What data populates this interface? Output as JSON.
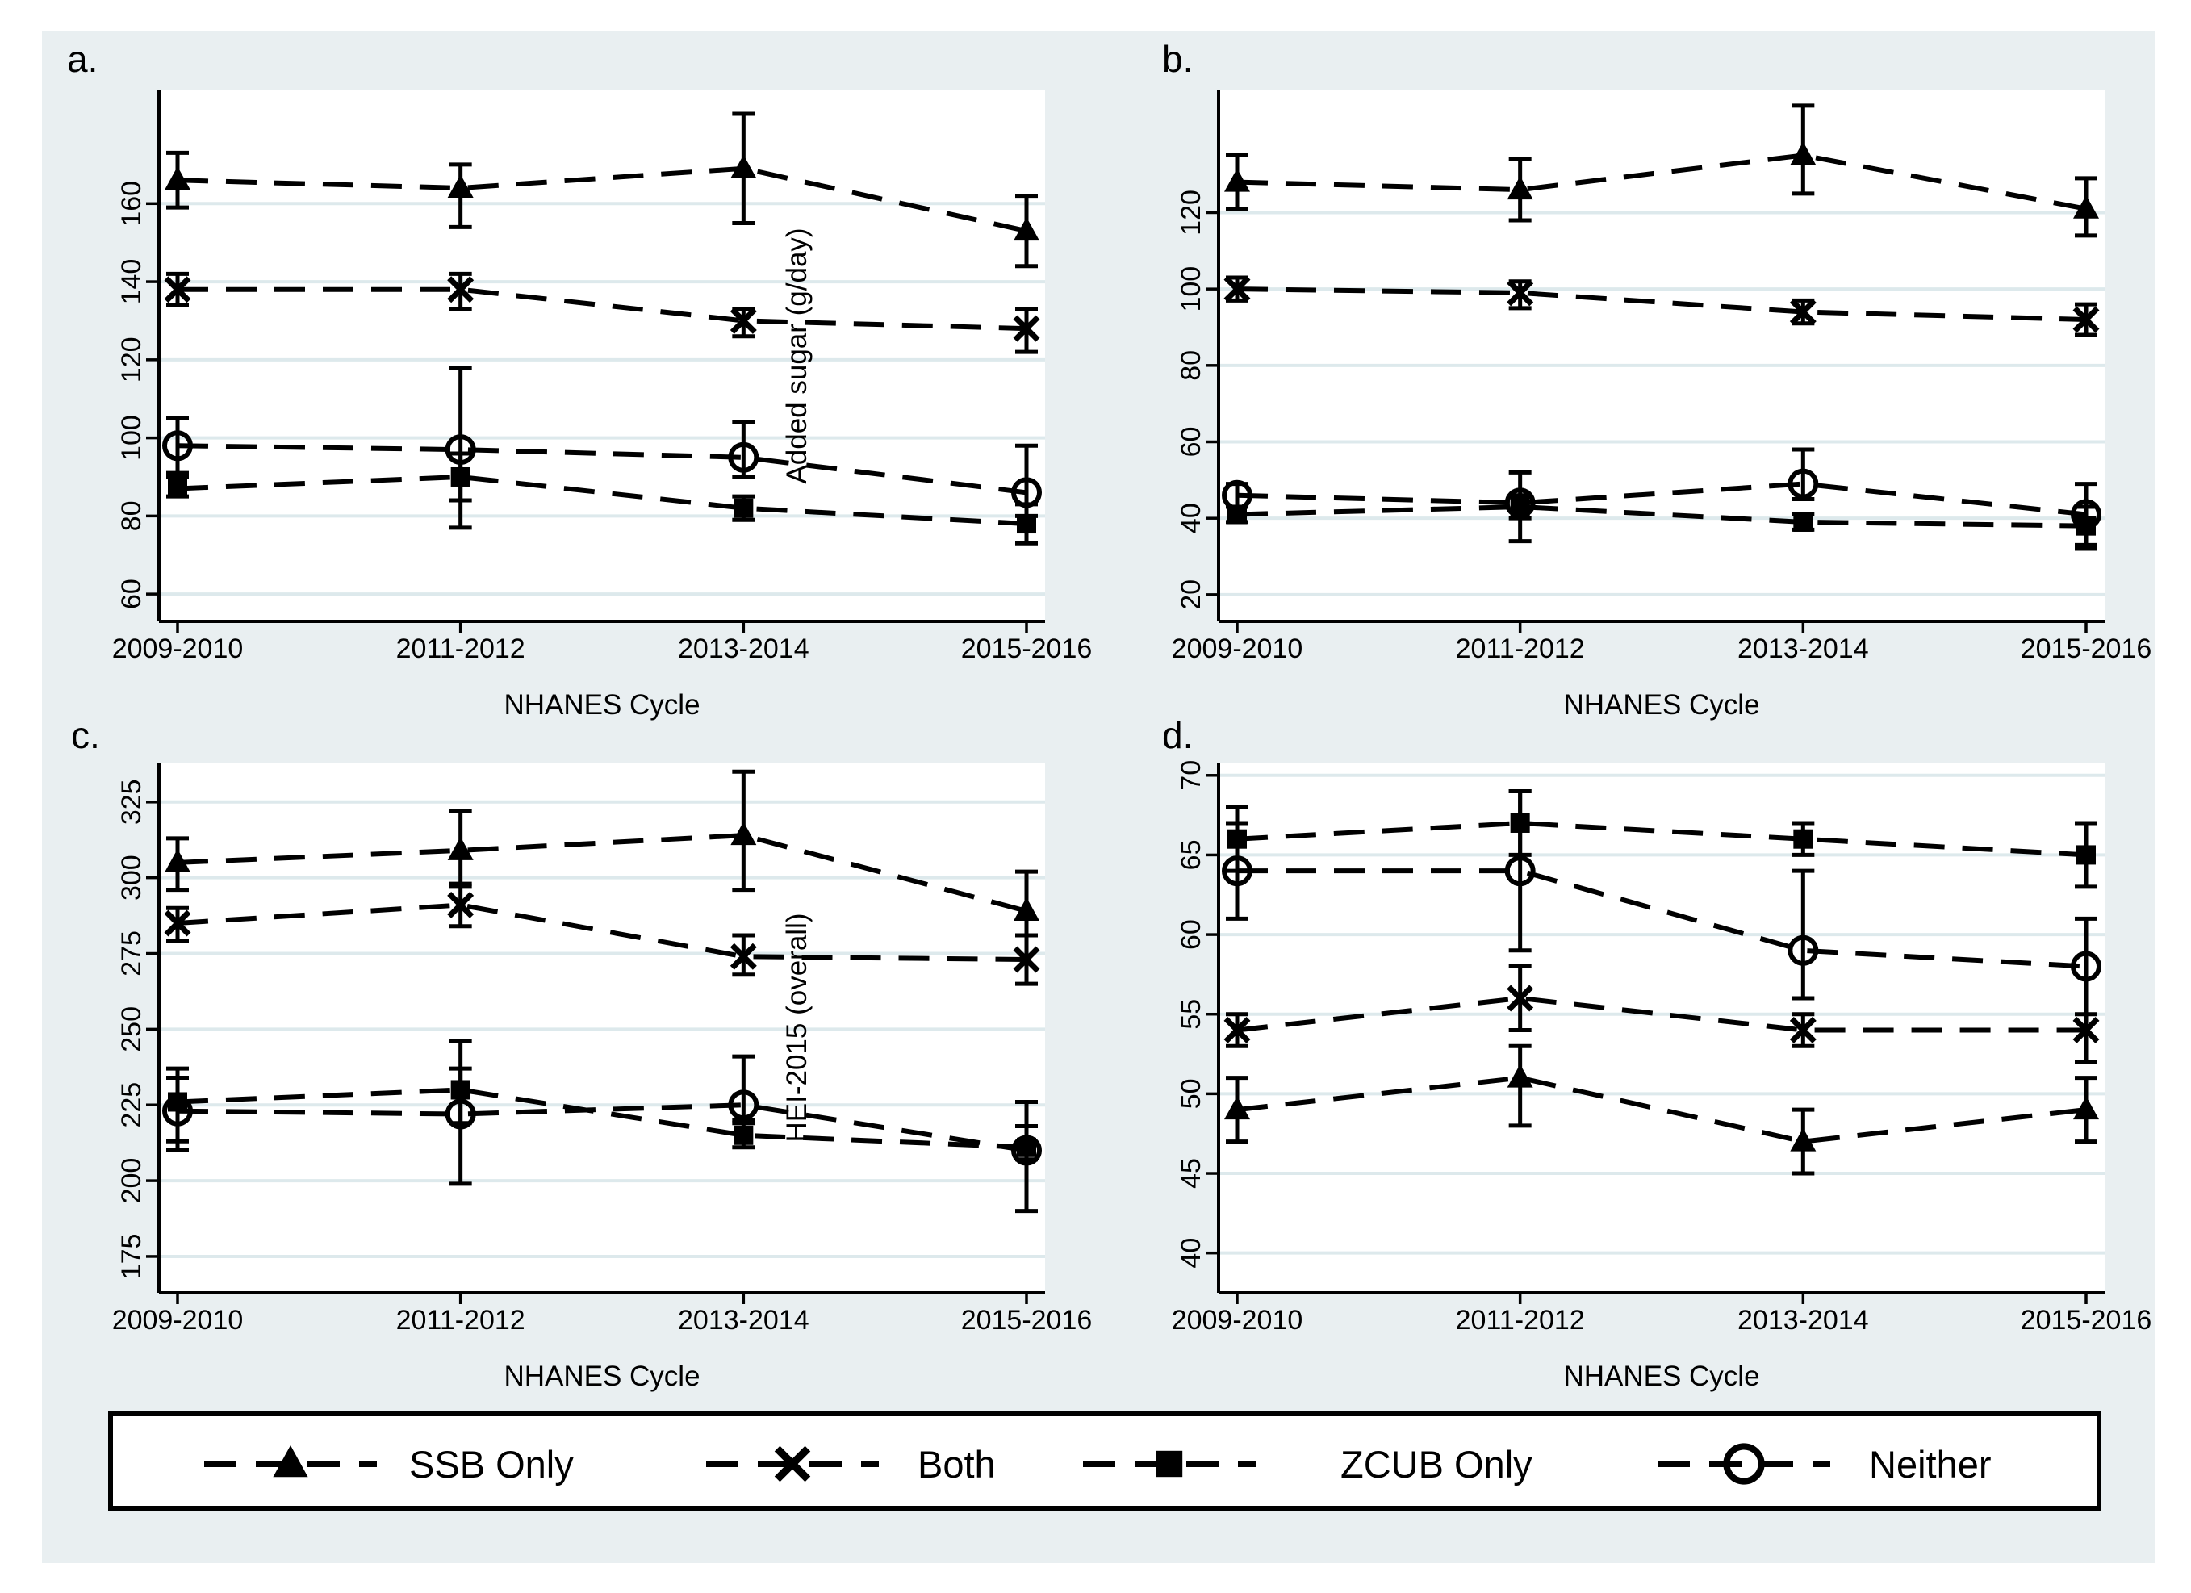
{
  "figure": {
    "bg_color": "#e9eff1",
    "plot_bg_color": "#ffffff",
    "grid_color": "#dde9ec",
    "line_color": "#000000"
  },
  "legend": {
    "items": [
      {
        "label": "SSB Only",
        "marker": "triangle"
      },
      {
        "label": "Both",
        "marker": "x"
      },
      {
        "label": "ZCUB Only",
        "marker": "square"
      },
      {
        "label": "Neither",
        "marker": "circle"
      }
    ]
  },
  "chart_data": [
    {
      "id": "a",
      "letter": "a.",
      "type": "line",
      "xlabel": "NHANES Cycle",
      "inner_ytitle": "Added sugar (g/day)",
      "categories": [
        "2009-2010",
        "2011-2012",
        "2013-2014",
        "2015-2016"
      ],
      "yticks": [
        60,
        80,
        100,
        120,
        140,
        160
      ],
      "ylim": [
        53,
        189
      ],
      "grid": true,
      "legend_position": "bottom-shared",
      "series": [
        {
          "name": "SSB Only",
          "marker": "triangle",
          "values": [
            166,
            164,
            169,
            153
          ],
          "ci_low": [
            159,
            154,
            155,
            144
          ],
          "ci_high": [
            173,
            170,
            183,
            162
          ]
        },
        {
          "name": "Both",
          "marker": "x",
          "values": [
            138,
            138,
            130,
            128
          ],
          "ci_low": [
            134,
            133,
            126,
            122
          ],
          "ci_high": [
            142,
            142,
            133,
            133
          ]
        },
        {
          "name": "ZCUB Only",
          "marker": "square",
          "values": [
            87,
            90,
            82,
            78
          ],
          "ci_low": [
            85,
            84,
            79,
            73
          ],
          "ci_high": [
            90,
            96,
            85,
            83
          ]
        },
        {
          "name": "Neither",
          "marker": "circle",
          "values": [
            98,
            97,
            95,
            86
          ],
          "ci_low": [
            91,
            77,
            90,
            80
          ],
          "ci_high": [
            105,
            118,
            104,
            98
          ]
        }
      ]
    },
    {
      "id": "b",
      "letter": "b.",
      "type": "line",
      "xlabel": "NHANES Cycle",
      "inner_ytitle": null,
      "categories": [
        "2009-2010",
        "2011-2012",
        "2013-2014",
        "2015-2016"
      ],
      "yticks": [
        20,
        40,
        60,
        80,
        100,
        120
      ],
      "ylim": [
        13,
        152
      ],
      "grid": true,
      "legend_position": "bottom-shared",
      "series": [
        {
          "name": "SSB Only",
          "marker": "triangle",
          "values": [
            128,
            126,
            135,
            121
          ],
          "ci_low": [
            121,
            118,
            125,
            114
          ],
          "ci_high": [
            135,
            134,
            148,
            129
          ]
        },
        {
          "name": "Both",
          "marker": "x",
          "values": [
            100,
            99,
            94,
            92
          ],
          "ci_low": [
            97,
            95,
            91,
            88
          ],
          "ci_high": [
            103,
            102,
            97,
            96
          ]
        },
        {
          "name": "ZCUB Only",
          "marker": "square",
          "values": [
            41,
            43,
            39,
            38
          ],
          "ci_low": [
            39,
            40,
            37,
            33
          ],
          "ci_high": [
            43,
            46,
            41,
            43
          ]
        },
        {
          "name": "Neither",
          "marker": "circle",
          "values": [
            46,
            44,
            49,
            41
          ],
          "ci_low": [
            43,
            34,
            45,
            32
          ],
          "ci_high": [
            49,
            52,
            58,
            49
          ]
        }
      ]
    },
    {
      "id": "c",
      "letter": "c.",
      "type": "line",
      "xlabel": "NHANES Cycle",
      "inner_ytitle": "HEI-2015 (overall)",
      "categories": [
        "2009-2010",
        "2011-2012",
        "2013-2014",
        "2015-2016"
      ],
      "yticks": [
        175,
        200,
        225,
        250,
        275,
        300,
        325
      ],
      "ylim": [
        163,
        338
      ],
      "grid": true,
      "legend_position": "bottom-shared",
      "series": [
        {
          "name": "SSB Only",
          "marker": "triangle",
          "values": [
            305,
            309,
            314,
            289
          ],
          "ci_low": [
            296,
            297,
            296,
            281
          ],
          "ci_high": [
            313,
            322,
            335,
            302
          ]
        },
        {
          "name": "Both",
          "marker": "x",
          "values": [
            285,
            291,
            274,
            273
          ],
          "ci_low": [
            279,
            284,
            268,
            265
          ],
          "ci_high": [
            290,
            298,
            281,
            281
          ]
        },
        {
          "name": "ZCUB Only",
          "marker": "square",
          "values": [
            226,
            230,
            215,
            211
          ],
          "ci_low": [
            213,
            219,
            211,
            207
          ],
          "ci_high": [
            237,
            246,
            219,
            218
          ]
        },
        {
          "name": "Neither",
          "marker": "circle",
          "values": [
            223,
            222,
            225,
            210
          ],
          "ci_low": [
            210,
            199,
            220,
            190
          ],
          "ci_high": [
            234,
            237,
            241,
            226
          ]
        }
      ]
    },
    {
      "id": "d",
      "letter": "d.",
      "type": "line",
      "xlabel": "NHANES Cycle",
      "inner_ytitle": null,
      "categories": [
        "2009-2010",
        "2011-2012",
        "2013-2014",
        "2015-2016"
      ],
      "yticks": [
        40,
        45,
        50,
        55,
        60,
        65,
        70
      ],
      "ylim": [
        37.5,
        70.8
      ],
      "grid": true,
      "legend_position": "bottom-shared",
      "series": [
        {
          "name": "SSB Only",
          "marker": "triangle",
          "values": [
            49,
            51,
            47,
            49
          ],
          "ci_low": [
            47,
            48,
            45,
            47
          ],
          "ci_high": [
            51,
            53,
            49,
            51
          ]
        },
        {
          "name": "Both",
          "marker": "x",
          "values": [
            54,
            56,
            54,
            54
          ],
          "ci_low": [
            53,
            54,
            53,
            52
          ],
          "ci_high": [
            55,
            58,
            55,
            55
          ]
        },
        {
          "name": "ZCUB Only",
          "marker": "square",
          "values": [
            66,
            67,
            66,
            65
          ],
          "ci_low": [
            64,
            65,
            65,
            63
          ],
          "ci_high": [
            68,
            69,
            67,
            67
          ]
        },
        {
          "name": "Neither",
          "marker": "circle",
          "values": [
            64,
            64,
            59,
            58
          ],
          "ci_low": [
            61,
            59,
            56,
            52
          ],
          "ci_high": [
            67,
            69,
            64,
            61
          ]
        }
      ]
    }
  ]
}
